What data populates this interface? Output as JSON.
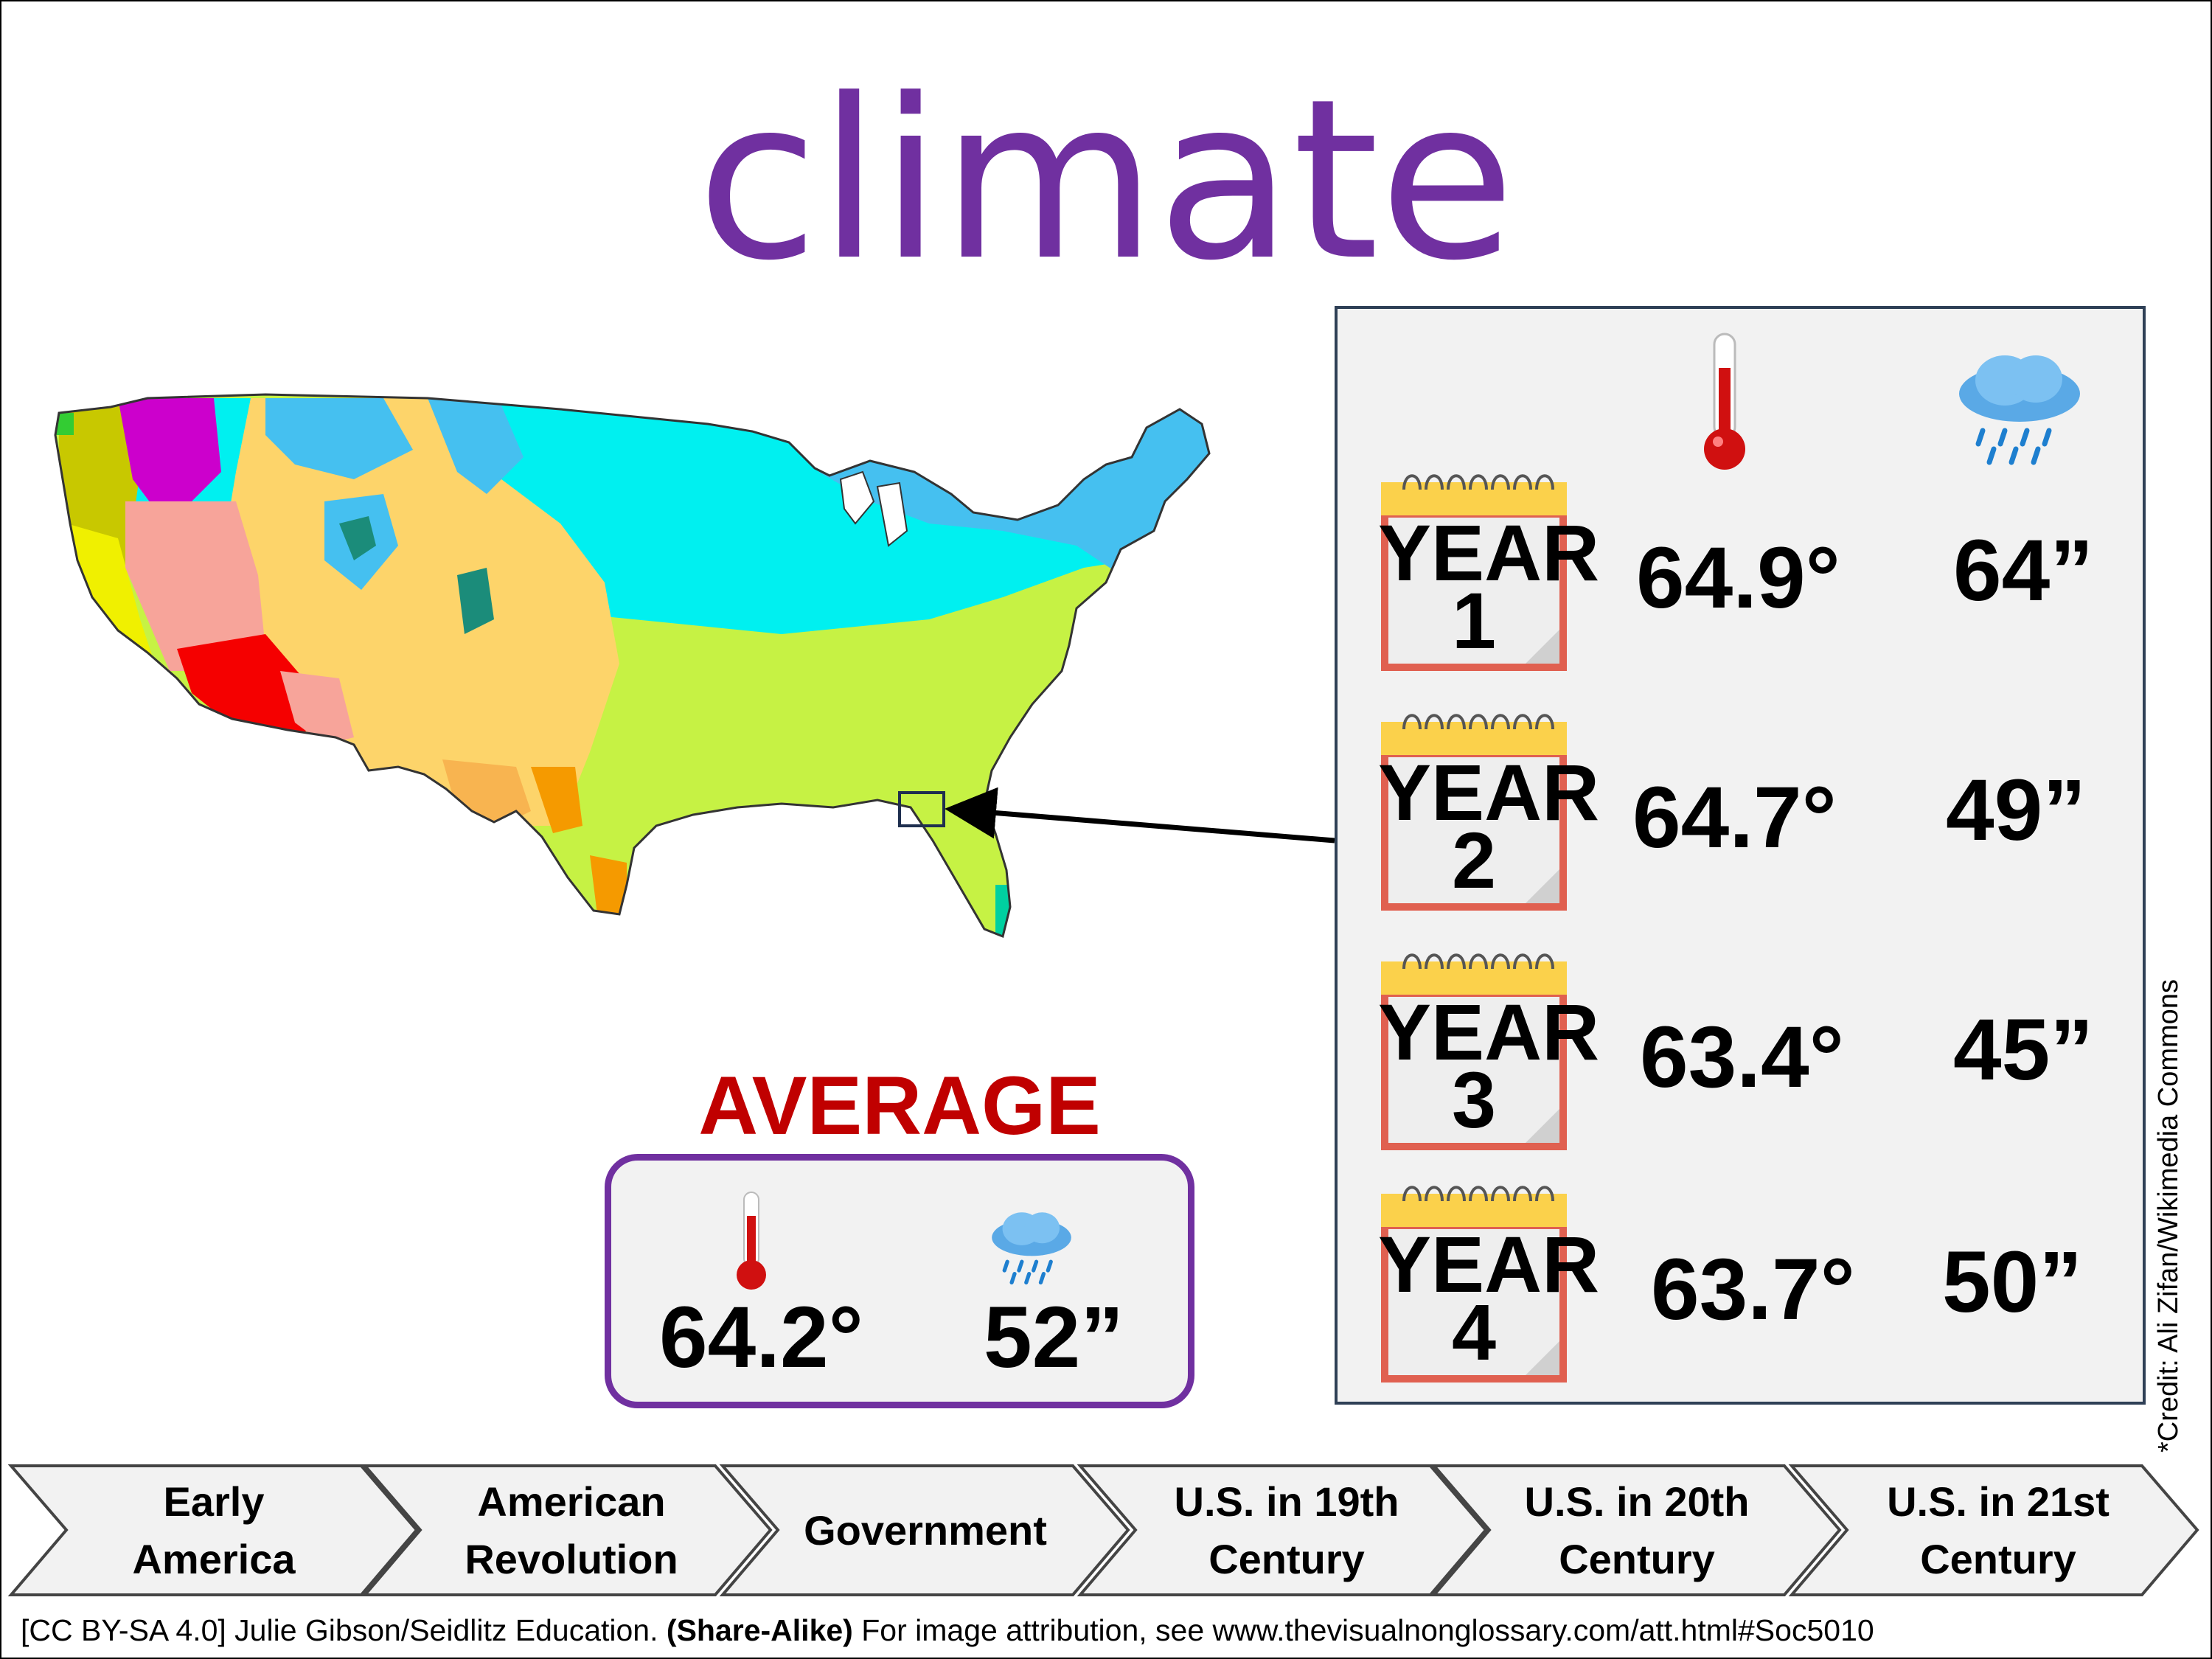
{
  "title": "climate",
  "years": [
    {
      "label": "YEAR",
      "num": "1",
      "temp": "64.9°",
      "rain": "64”"
    },
    {
      "label": "YEAR",
      "num": "2",
      "temp": "64.7°",
      "rain": "49”"
    },
    {
      "label": "YEAR",
      "num": "3",
      "temp": "63.4°",
      "rain": "45”"
    },
    {
      "label": "YEAR",
      "num": "4",
      "temp": "63.7°",
      "rain": "50”"
    }
  ],
  "average": {
    "title": "AVERAGE",
    "temp": "64.2°",
    "rain": "52”"
  },
  "credit": "*Credit: Ali Zifan/Wikimedia Commons",
  "nav": [
    {
      "line1": "Early",
      "line2": "America"
    },
    {
      "line1": "American",
      "line2": "Revolution"
    },
    {
      "line1": "Government",
      "line2": ""
    },
    {
      "line1": "U.S. in 19th",
      "line2": "Century"
    },
    {
      "line1": "U.S. in 20th",
      "line2": "Century"
    },
    {
      "line1": "U.S. in 21st",
      "line2": "Century"
    }
  ],
  "footer": {
    "license": "[CC BY-SA 4.0] Julie Gibson/Seidlitz Education.",
    "share": "(Share-Alike)",
    "attribution": "For image attribution, see www.thevisualnonglossary.com/att.html#Soc5010"
  },
  "colors": {
    "title": "#7030a0",
    "average": "#c00000",
    "panel_border": "#2f4056",
    "calendar_red": "#e06050",
    "calendar_yellow": "#fbd14b"
  },
  "icons": [
    "thermometer-icon",
    "rain-cloud-icon",
    "calendar-icon",
    "us-climate-map"
  ]
}
